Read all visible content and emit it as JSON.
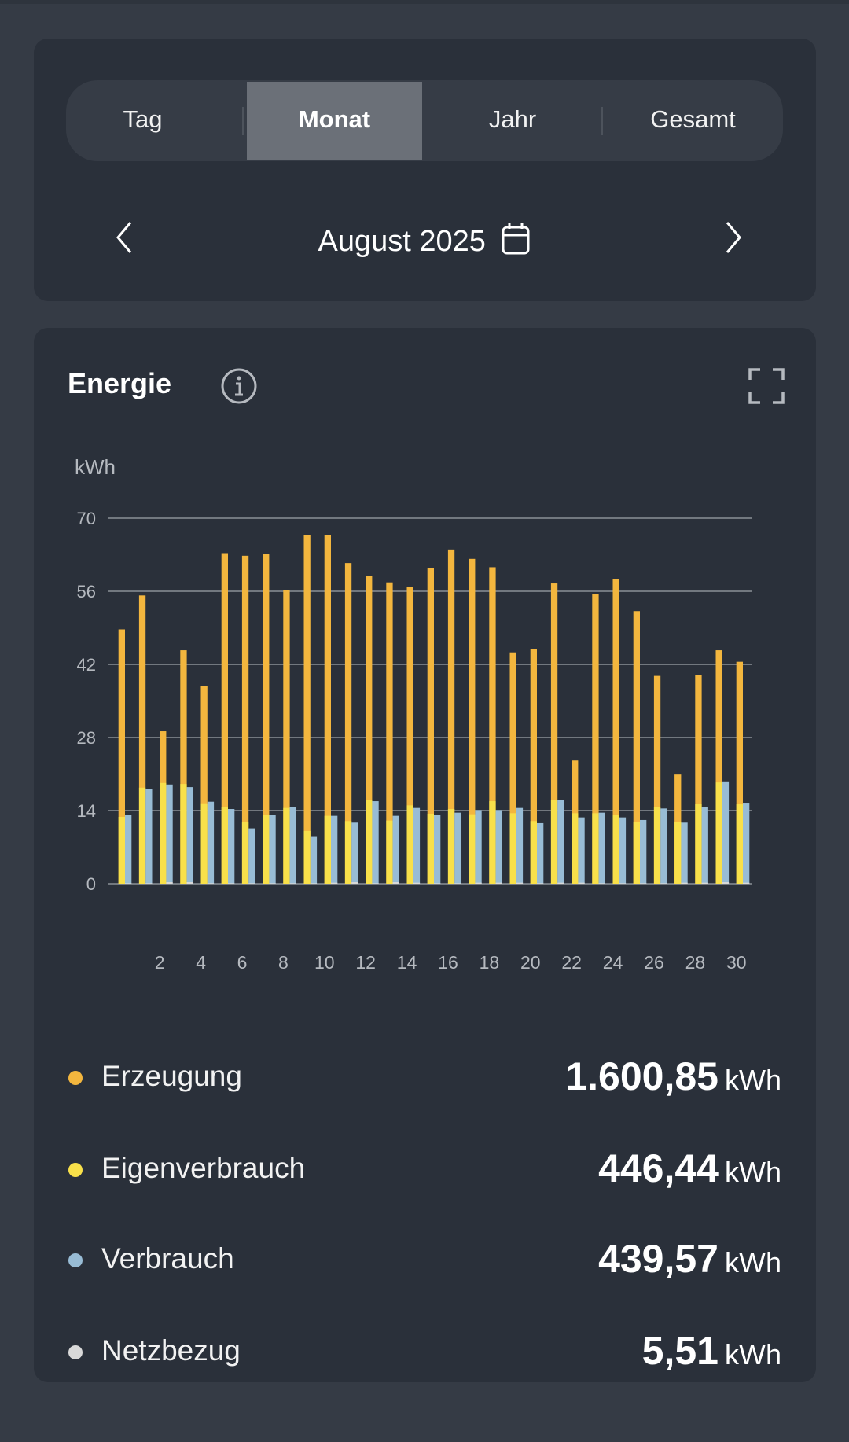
{
  "tabs": [
    {
      "label": "Tag",
      "active": false
    },
    {
      "label": "Monat",
      "active": true
    },
    {
      "label": "Jahr",
      "active": false
    },
    {
      "label": "Gesamt",
      "active": false
    }
  ],
  "date_nav": {
    "label": "August 2025",
    "prev_icon": "chevron-left-icon",
    "next_icon": "chevron-right-icon",
    "calendar_icon": "calendar-icon"
  },
  "energy": {
    "title": "Energie",
    "info_icon": "info-icon",
    "expand_icon": "fullscreen-icon"
  },
  "legend": [
    {
      "label": "Erzeugung",
      "value": "1.600,85",
      "unit": "kWh",
      "color": "#f3b63e"
    },
    {
      "label": "Eigenverbrauch",
      "value": "446,44",
      "unit": "kWh",
      "color": "#f8e04a"
    },
    {
      "label": "Verbrauch",
      "value": "439,57",
      "unit": "kWh",
      "color": "#98bcd5"
    },
    {
      "label": "Netzbezug",
      "value": "5,51",
      "unit": "kWh",
      "color": "#d9d9d9"
    }
  ],
  "chart_data": {
    "type": "bar",
    "ylabel": "kWh",
    "ylim": [
      0,
      70
    ],
    "yticks": [
      0,
      14,
      28,
      42,
      56,
      70
    ],
    "xticks": [
      "2",
      "4",
      "6",
      "8",
      "10",
      "12",
      "14",
      "16",
      "18",
      "20",
      "22",
      "24",
      "26",
      "28",
      "30"
    ],
    "grid": true,
    "categories": [
      1,
      2,
      3,
      4,
      5,
      6,
      7,
      8,
      9,
      10,
      11,
      12,
      13,
      14,
      15,
      16,
      17,
      18,
      19,
      20,
      21,
      22,
      23,
      24,
      25,
      26,
      27,
      28,
      29,
      30,
      31
    ],
    "series": [
      {
        "name": "Erzeugung",
        "color": "#f3b63e",
        "values": [
          48.7,
          55.2,
          29.2,
          44.7,
          37.9,
          63.3,
          62.8,
          63.2,
          56.2,
          66.7,
          66.8,
          61.4,
          59.0,
          57.7,
          56.9,
          60.4,
          64.0,
          62.2,
          60.6,
          44.3,
          44.9,
          57.5,
          23.6,
          55.4,
          58.3,
          52.2,
          39.8,
          20.9,
          39.9,
          44.7,
          42.5
        ]
      },
      {
        "name": "Eigenverbrauch",
        "color": "#f8e04a",
        "values": [
          12.8,
          18.4,
          19.3,
          19.1,
          15.4,
          14.7,
          11.9,
          13.2,
          14.5,
          10.1,
          13.0,
          12.0,
          16.1,
          12.1,
          15.0,
          13.4,
          14.3,
          13.3,
          15.8,
          13.5,
          12.0,
          16.1,
          13.5,
          13.5,
          13.1,
          11.9,
          14.7,
          11.9,
          15.3,
          19.4,
          15.2
        ]
      },
      {
        "name": "Verbrauch",
        "color": "#98bcd5",
        "values": [
          13.1,
          18.2,
          19.0,
          18.5,
          15.7,
          14.3,
          10.6,
          13.1,
          14.7,
          9.1,
          13.0,
          11.7,
          15.8,
          13.0,
          14.5,
          13.2,
          13.6,
          14.1,
          14.1,
          14.5,
          11.6,
          16.0,
          12.7,
          13.6,
          12.7,
          12.2,
          14.4,
          11.7,
          14.7,
          19.6,
          15.5
        ]
      },
      {
        "name": "Netzbezug",
        "color": "#d9d9d9",
        "values": [
          0.1,
          0.1,
          0.3,
          0.3,
          0.1,
          0.1,
          0.1,
          0.1,
          0.1,
          0.1,
          0.2,
          0.3,
          0.1,
          0.3,
          0.2,
          0.1,
          0.1,
          0.2,
          0.2,
          0.2,
          0.1,
          0.2,
          0.2,
          0.1,
          0.1,
          0.1,
          0.1,
          0.2,
          0.2,
          0.3,
          0.2
        ]
      }
    ]
  }
}
